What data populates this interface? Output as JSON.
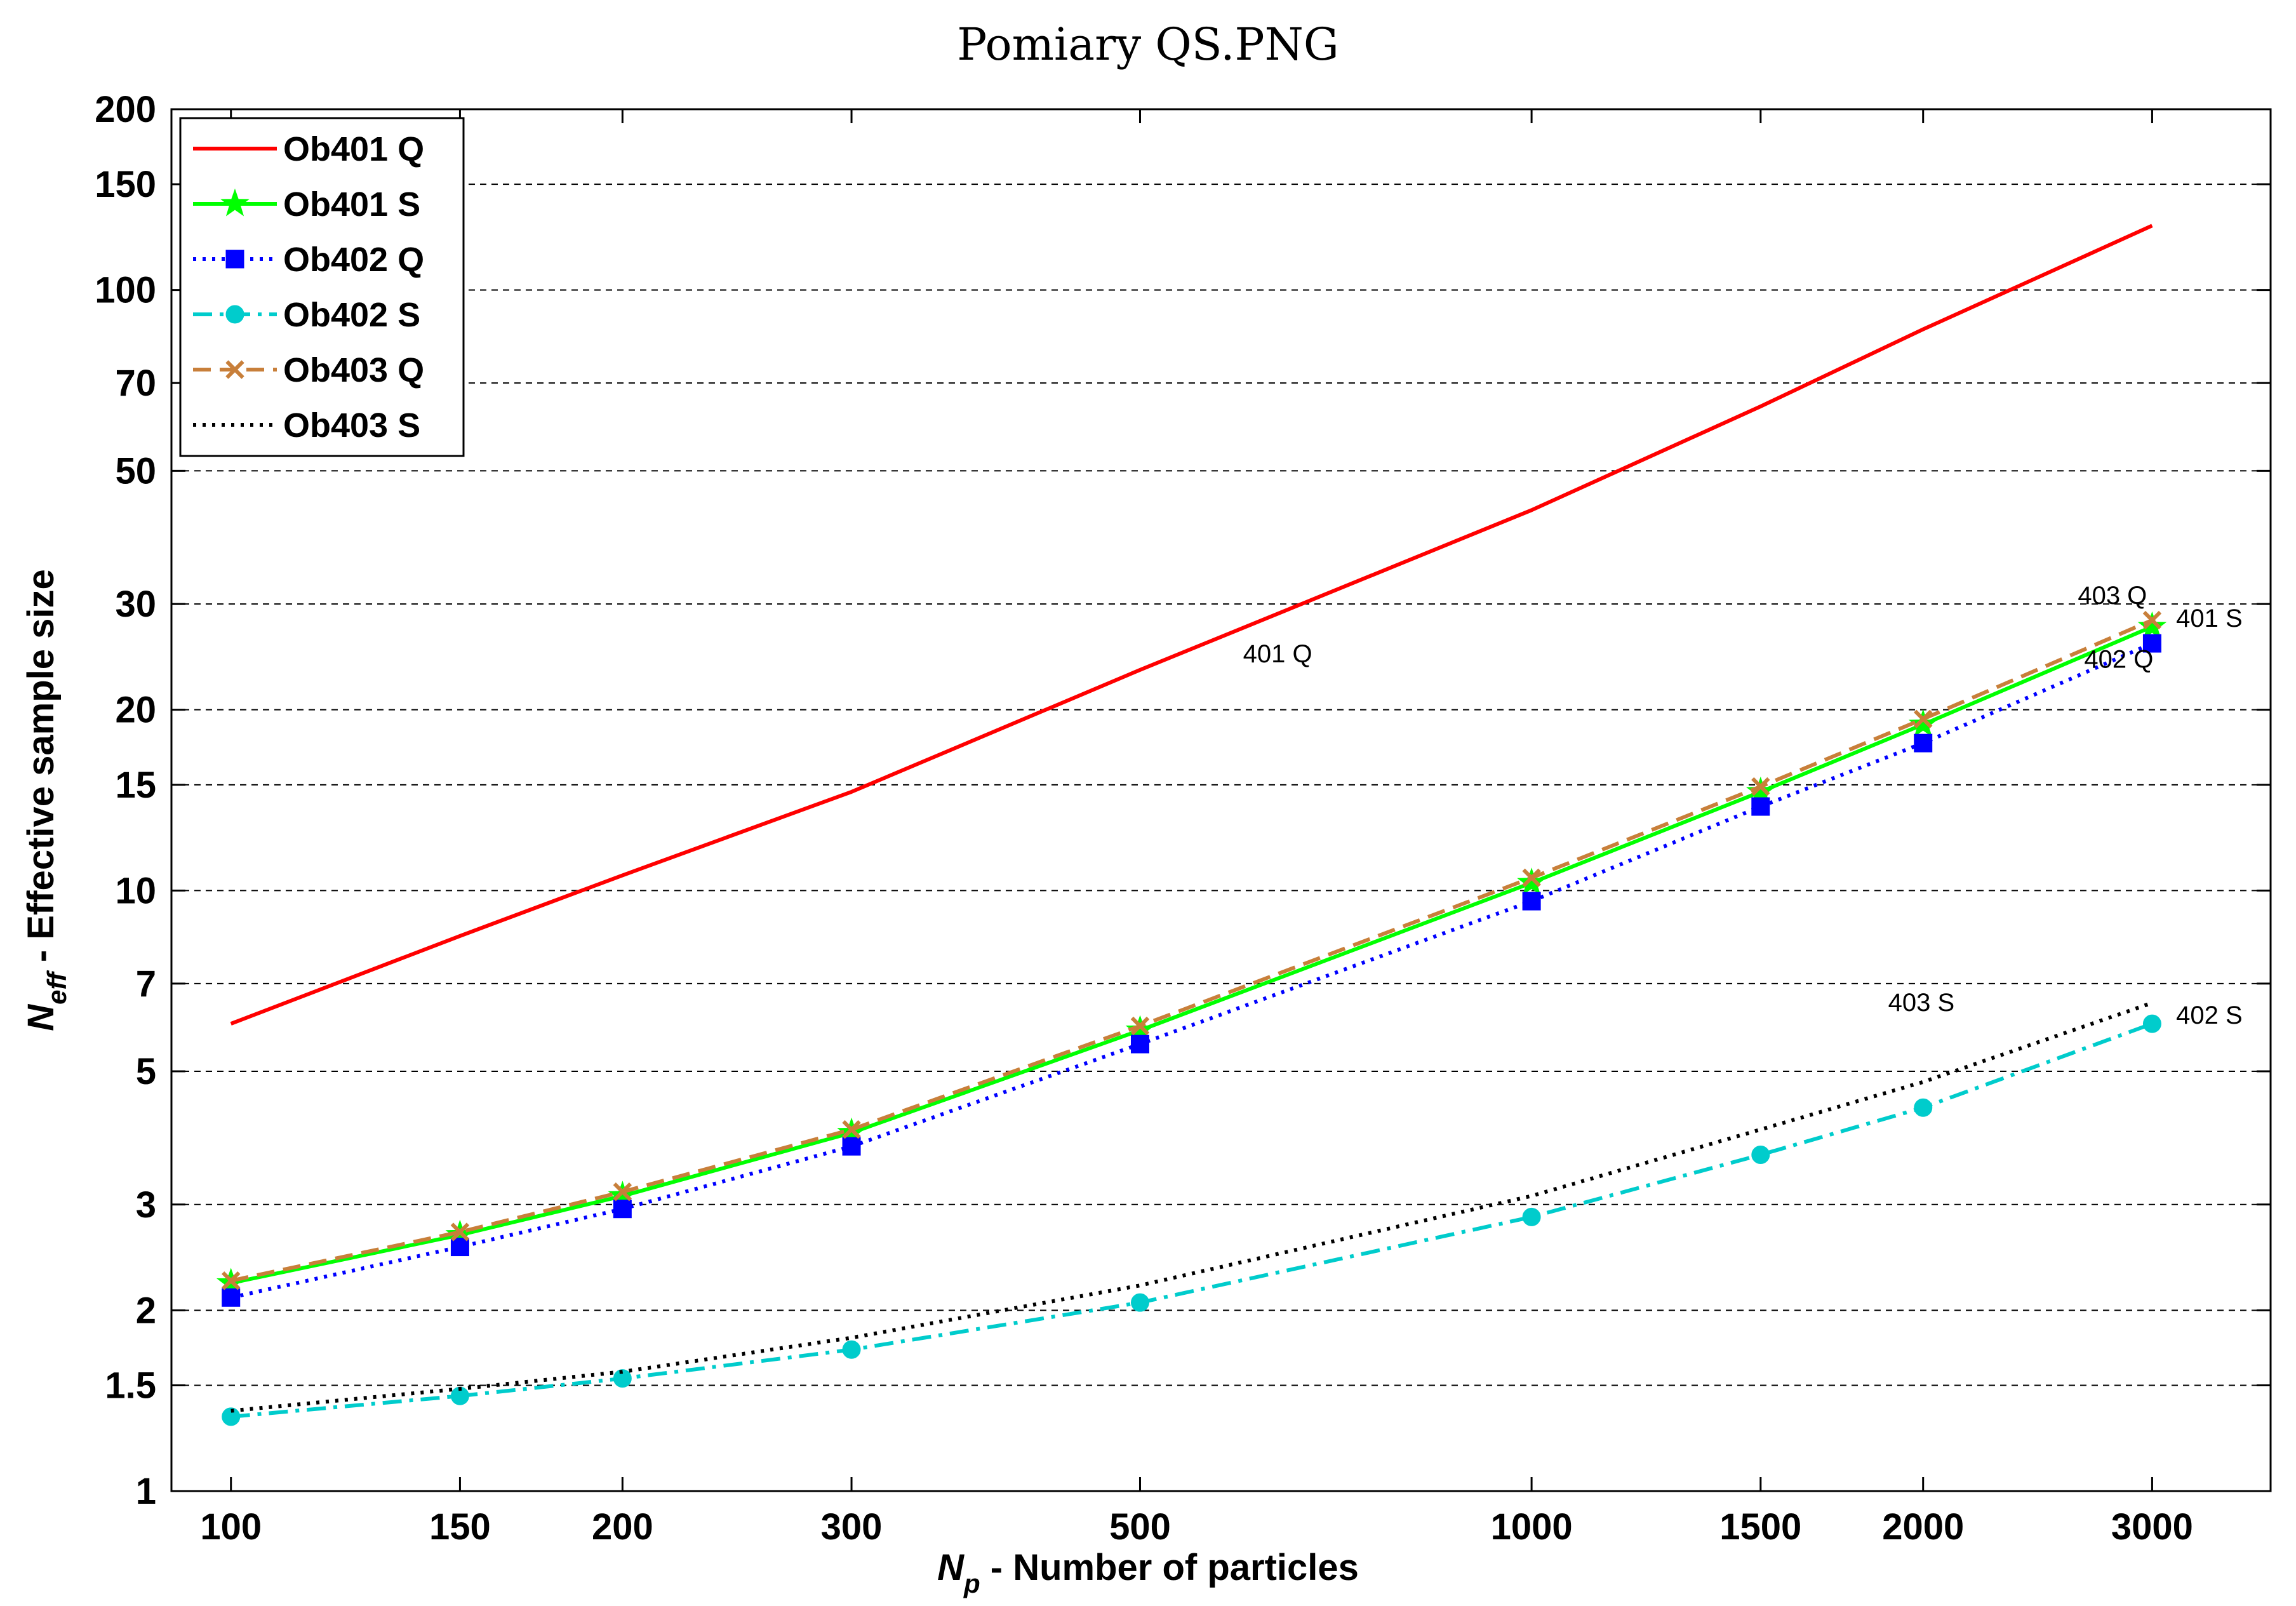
{
  "chart_data": {
    "type": "line",
    "title": "Pomiary QS.PNG",
    "xlabel_var": "N",
    "xlabel_sub": "p",
    "xlabel_rest": " - Number of particles",
    "ylabel_var": "N",
    "ylabel_sub": "eff",
    "ylabel_rest": " - Effective sample size",
    "xscale": "log",
    "yscale": "log",
    "xlim": [
      90,
      3700
    ],
    "ylim": [
      1,
      200
    ],
    "grid": "horizontal-dashed",
    "legend_position": "top-left",
    "x": [
      100,
      150,
      200,
      300,
      500,
      1000,
      1500,
      2000,
      3000
    ],
    "x_ticks": [
      100,
      150,
      200,
      300,
      500,
      1000,
      1500,
      2000,
      3000
    ],
    "x_tick_labels": [
      "100",
      "150",
      "200",
      "300",
      "500",
      "1000",
      "1500",
      "2000",
      "3000"
    ],
    "y_ticks": [
      1,
      1.5,
      2,
      3,
      5,
      7,
      10,
      15,
      20,
      30,
      50,
      70,
      100,
      150,
      200
    ],
    "y_tick_labels": [
      "1",
      "1.5",
      "2",
      "3",
      "5",
      "7",
      "10",
      "15",
      "20",
      "30",
      "50",
      "70",
      "100",
      "150",
      "200"
    ],
    "series": [
      {
        "name": "Ob401 Q",
        "color": "#ff0000",
        "dash": "solid",
        "marker": "none",
        "values": [
          6.0,
          8.4,
          10.6,
          14.6,
          23.3,
          43.0,
          64.0,
          86.0,
          128.0
        ]
      },
      {
        "name": "Ob401 S",
        "color": "#00ff00",
        "dash": "solid",
        "marker": "star",
        "values": [
          2.22,
          2.67,
          3.1,
          3.95,
          5.85,
          10.3,
          14.6,
          18.9,
          27.5
        ]
      },
      {
        "name": "Ob402 Q",
        "color": "#0000ff",
        "dash": "dotted",
        "marker": "square",
        "values": [
          2.1,
          2.55,
          2.95,
          3.75,
          5.55,
          9.6,
          13.8,
          17.6,
          25.8
        ]
      },
      {
        "name": "Ob402 S",
        "color": "#00cccc",
        "dash": "dashdot",
        "marker": "circle",
        "values": [
          1.33,
          1.44,
          1.54,
          1.72,
          2.06,
          2.86,
          3.63,
          4.35,
          6.0
        ]
      },
      {
        "name": "Ob403 Q",
        "color": "#c87f3a",
        "dash": "dashed",
        "marker": "x",
        "values": [
          2.24,
          2.7,
          3.15,
          4.0,
          5.95,
          10.5,
          14.9,
          19.3,
          28.2
        ]
      },
      {
        "name": "Ob403 S",
        "color": "#000000",
        "dash": "dotted",
        "marker": "none",
        "values": [
          1.36,
          1.48,
          1.58,
          1.8,
          2.2,
          3.1,
          4.0,
          4.8,
          6.5
        ]
      }
    ],
    "annotations": [
      {
        "text": "401 Q",
        "x": 600,
        "y": 24
      },
      {
        "text": "403 Q",
        "x": 2630,
        "y": 30
      },
      {
        "text": "401 S",
        "x": 3130,
        "y": 27.5
      },
      {
        "text": "402 Q",
        "x": 2660,
        "y": 23.5
      },
      {
        "text": "403 S",
        "x": 1880,
        "y": 6.3
      },
      {
        "text": "402 S",
        "x": 3130,
        "y": 6.0
      }
    ]
  }
}
